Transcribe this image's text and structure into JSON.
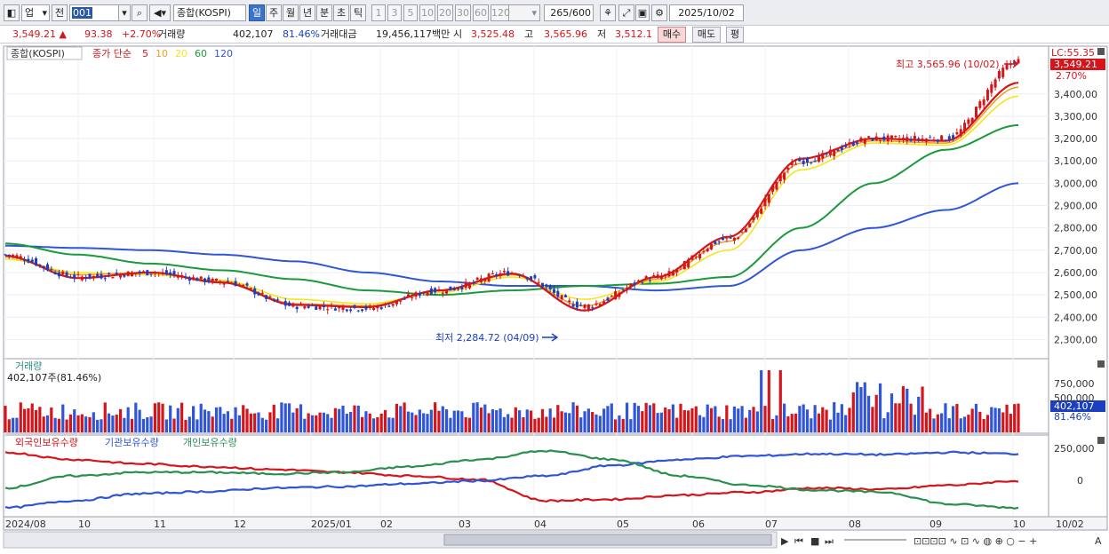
{
  "toolbar": {
    "market_select": "업",
    "prev_label": "전",
    "code_value": "001",
    "index_name": "종합(KOSPI)",
    "periods": [
      "일",
      "주",
      "월",
      "년",
      "분",
      "초",
      "틱"
    ],
    "active_period": "일",
    "intervals": [
      "1",
      "3",
      "5",
      "10",
      "20",
      "30",
      "60",
      "120"
    ],
    "count_value": "265",
    "count_max": "/600",
    "date_value": "2025/10/02"
  },
  "quote": {
    "price": "3,549.21",
    "change": "93.38",
    "change_pct": "+2.70%",
    "volume_label": "거래량",
    "volume": "402,107",
    "volume_pct": "81.46%",
    "amount_label": "거래대금",
    "amount": "19,456,117백만",
    "open_label": "시",
    "open": "3,525.48",
    "high_label": "고",
    "high": "3,565.96",
    "low_label": "저",
    "low": "3,512.1",
    "buy_label": "매수",
    "sell_label": "매도",
    "eval_label": "평"
  },
  "price_panel": {
    "legend_name": "종합(KOSPI)",
    "ma_label": "종가 단순",
    "ma_periods": [
      "5",
      "10",
      "20",
      "60",
      "120"
    ],
    "ma_colors": [
      "#d4151b",
      "#f0a020",
      "#f5e61a",
      "#1a9a3a",
      "#2f55d8"
    ],
    "lc_label": "LC:55.35",
    "current_tag": "3,549.21",
    "current_pct_tag": "2.70%",
    "high_annot": "최고 3,565.96 (10/02)",
    "low_annot": "최저 2,284.72 (04/09)",
    "y_ticks": [
      "3,400,00",
      "3,300,00",
      "3,200,00",
      "3,100,00",
      "3,000,00",
      "2,900,00",
      "2,800,00",
      "2,700,00",
      "2,600,00",
      "2,500,00",
      "2,400,00",
      "2,300,00"
    ]
  },
  "volume_panel": {
    "title": "거래량",
    "readout": "402,107주(81.46%)",
    "y_ticks": [
      "750,000",
      "500,000"
    ],
    "current_tag": "402,107",
    "current_pct": "81.46%"
  },
  "holding_panel": {
    "legend": [
      "외국인보유수량",
      "기관보유수량",
      "개인보유수량"
    ],
    "legend_colors": [
      "#d4151b",
      "#2f55d8",
      "#2a9050"
    ],
    "y_ticks": [
      "250,000",
      "0"
    ]
  },
  "x_axis": {
    "labels": [
      "2024/08",
      "10",
      "11",
      "12",
      "2025/01",
      "02",
      "03",
      "04",
      "05",
      "06",
      "07",
      "08",
      "09",
      "10"
    ],
    "right_label": "10/02"
  },
  "chart_data": {
    "type": "line",
    "title": "",
    "categories": [
      "2024/08",
      "09",
      "10",
      "11",
      "12",
      "2025/01",
      "02",
      "03",
      "04",
      "05",
      "06",
      "07",
      "08",
      "09",
      "10"
    ],
    "series": [
      {
        "name": "종합(KOSPI)",
        "values": [
          2680,
          2580,
          2600,
          2560,
          2450,
          2440,
          2520,
          2600,
          2450,
          2580,
          2750,
          3100,
          3200,
          3200,
          3549
        ]
      },
      {
        "name": "5",
        "values": [
          2675,
          2575,
          2600,
          2555,
          2455,
          2445,
          2520,
          2595,
          2430,
          2580,
          2760,
          3110,
          3200,
          3190,
          3450
        ]
      },
      {
        "name": "10",
        "values": [
          2670,
          2590,
          2600,
          2560,
          2460,
          2450,
          2520,
          2590,
          2450,
          2570,
          2740,
          3090,
          3190,
          3180,
          3430
        ]
      },
      {
        "name": "20",
        "values": [
          2660,
          2600,
          2590,
          2565,
          2480,
          2460,
          2510,
          2580,
          2480,
          2560,
          2700,
          3060,
          3180,
          3170,
          3390
        ]
      },
      {
        "name": "60",
        "values": [
          2730,
          2680,
          2640,
          2610,
          2570,
          2520,
          2500,
          2520,
          2540,
          2550,
          2580,
          2800,
          3000,
          3150,
          3260
        ]
      },
      {
        "name": "120",
        "values": [
          2720,
          2710,
          2700,
          2680,
          2650,
          2600,
          2560,
          2540,
          2540,
          2520,
          2540,
          2700,
          2800,
          2880,
          3000
        ]
      }
    ],
    "ylim": [
      2230,
      3590
    ],
    "low": 2284.72,
    "high": 3565.96
  }
}
